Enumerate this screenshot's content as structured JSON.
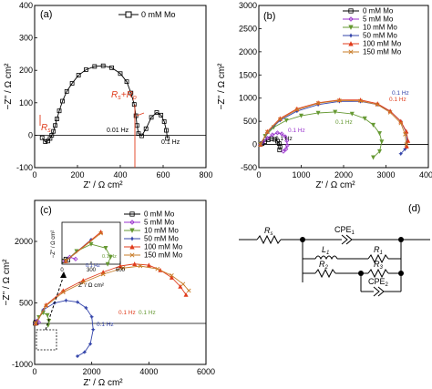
{
  "figure": {
    "panels": [
      {
        "label": "(a)",
        "xlabel": "Z' / Ω cm²",
        "ylabel": "−Z'' / Ω cm²",
        "xlim": [
          0,
          800
        ],
        "ylim": [
          -100,
          400
        ],
        "xticks": [
          "0",
          "200",
          "400",
          "600",
          "800"
        ],
        "yticks": [
          "-100",
          "0",
          "100",
          "200",
          "300",
          "400"
        ],
        "ytick_values": [
          -100,
          0,
          100,
          200,
          300,
          400
        ],
        "xtick_values": [
          0,
          200,
          400,
          600,
          800
        ],
        "legend": [
          {
            "label": "0 mM Mo",
            "color": "#000000",
            "marker": "square"
          }
        ],
        "annotations": {
          "rs": "R",
          "rs_sub": "s",
          "rp": "R",
          "rp_sub": "s",
          "plus": "+",
          "rp2": "R",
          "rp2_sub": "p",
          "freq_low": "0.01 Hz",
          "freq_high": "0.1 Hz"
        }
      },
      {
        "label": "(b)",
        "xlabel": "Z' / Ω cm²",
        "ylabel": "−Z'' / Ω cm²",
        "xlim": [
          0,
          4000
        ],
        "ylim": [
          -500,
          3000
        ],
        "xticks": [
          "0",
          "1000",
          "2000",
          "3000",
          "4000"
        ],
        "xtick_values": [
          0,
          1000,
          2000,
          3000,
          4000
        ],
        "yticks": [
          "-500",
          "0",
          "500",
          "1000",
          "1500",
          "2000",
          "2500",
          "3000"
        ],
        "ytick_values": [
          -500,
          0,
          500,
          1000,
          1500,
          2000,
          2500,
          3000
        ],
        "legend": [
          {
            "label": "0 mM Mo",
            "color": "#000000",
            "marker": "square"
          },
          {
            "label": "5 mM Mo",
            "color": "#9933cc",
            "marker": "diamond"
          },
          {
            "label": "10 mM Mo",
            "color": "#669933",
            "marker": "triangle-down"
          },
          {
            "label": "50 mM Mo",
            "color": "#3344aa",
            "marker": "star"
          },
          {
            "label": "100 mM Mo",
            "color": "#e03c1c",
            "marker": "triangle-up"
          },
          {
            "label": "150 mM Mo",
            "color": "#c87d2a",
            "marker": "x"
          }
        ],
        "annotations": {
          "f1": "0.1 Hz",
          "f2": "0.1 Hz",
          "f3": "0.1 Hz",
          "f4": "0.1 Hz",
          "f5": "0.1 Hz"
        }
      },
      {
        "label": "(c)",
        "xlabel": "Z' / Ω cm²",
        "ylabel": "−Z'' / Ω cm²",
        "xlim": [
          0,
          6000
        ],
        "ylim": [
          -1000,
          3000
        ],
        "xticks": [
          "0",
          "2000",
          "4000",
          "6000"
        ],
        "xtick_values": [
          0,
          2000,
          4000,
          6000
        ],
        "yticks": [
          "-1000",
          "500",
          "2000"
        ],
        "ytick_values": [
          -1000,
          500,
          2000
        ],
        "legend": [
          {
            "label": "0 mM Mo",
            "color": "#000000",
            "marker": "square"
          },
          {
            "label": "5 mM Mo",
            "color": "#9933cc",
            "marker": "diamond"
          },
          {
            "label": "10 mM Mo",
            "color": "#669933",
            "marker": "triangle-down"
          },
          {
            "label": "50 mM Mo",
            "color": "#3344aa",
            "marker": "star"
          },
          {
            "label": "100 mM Mo",
            "color": "#e03c1c",
            "marker": "triangle-up"
          },
          {
            "label": "150 mM Mo",
            "color": "#c87d2a",
            "marker": "x"
          }
        ],
        "annotations": {
          "f1": "0.1 Hz",
          "f2": "0.1 Hz",
          "f3": "0.1 Hz"
        },
        "inset": {
          "xlabel": "Z' / Ω cm²",
          "ylabel": "−Z'' / Ω cm²",
          "xticks": [
            "0",
            "300",
            "600"
          ],
          "xtick_values": [
            0,
            300,
            600
          ],
          "xlim": [
            0,
            600
          ],
          "ylim": [
            -50,
            600
          ],
          "annotations": {
            "f1": "0.1 Hz",
            "f2": "0.1 Hz"
          }
        }
      },
      {
        "label": "(d)",
        "circuit": {
          "rs": "R",
          "rs_sub": "s",
          "cpe1": "CPE",
          "cpe1_sub": "1",
          "l1": "L",
          "l1_sub": "1",
          "r1": "R",
          "r1_sub": "1",
          "r2": "R",
          "r2_sub": "2",
          "r3": "R",
          "r3_sub": "3",
          "cpe2": "CPE",
          "cpe2_sub": "2"
        }
      }
    ]
  },
  "chart_data": [
    {
      "type": "scatter",
      "panel": "(a)",
      "xlabel": "Z' / Ω cm²",
      "ylabel": "−Z'' / Ω cm²",
      "xlim": [
        0,
        800
      ],
      "ylim": [
        -100,
        400
      ],
      "series": [
        {
          "name": "0 mM Mo",
          "x": [
            35,
            50,
            62,
            72,
            80,
            88,
            96,
            104,
            115,
            130,
            150,
            175,
            205,
            240,
            280,
            320,
            360,
            400,
            430,
            450,
            465,
            473,
            478,
            485,
            500,
            520,
            545,
            570,
            590,
            605,
            615,
            620
          ],
          "y": [
            -8,
            -20,
            -18,
            -10,
            0,
            12,
            30,
            50,
            75,
            105,
            135,
            160,
            185,
            202,
            212,
            214,
            208,
            190,
            165,
            130,
            95,
            60,
            30,
            5,
            -2,
            20,
            55,
            70,
            62,
            42,
            15,
            -10
          ]
        }
      ]
    },
    {
      "type": "scatter",
      "panel": "(b)",
      "xlabel": "Z' / Ω cm²",
      "ylabel": "−Z'' / Ω cm²",
      "xlim": [
        0,
        4000
      ],
      "ylim": [
        -500,
        3000
      ],
      "series": [
        {
          "name": "0 mM Mo",
          "x": [
            40,
            80,
            140,
            220,
            300,
            380,
            440,
            480,
            500,
            490
          ],
          "y": [
            0,
            20,
            60,
            100,
            120,
            110,
            70,
            20,
            -50,
            -120
          ]
        },
        {
          "name": "5 mM Mo",
          "x": [
            40,
            100,
            200,
            320,
            440,
            540,
            620,
            660,
            670,
            640,
            580
          ],
          "y": [
            0,
            60,
            140,
            210,
            250,
            230,
            170,
            80,
            -20,
            -100,
            -150
          ]
        },
        {
          "name": "10 mM Mo",
          "x": [
            40,
            150,
            350,
            650,
            1000,
            1400,
            1800,
            2200,
            2500,
            2700,
            2850,
            2900,
            2850,
            2700
          ],
          "y": [
            0,
            180,
            370,
            520,
            620,
            680,
            700,
            660,
            560,
            420,
            240,
            60,
            -150,
            -280
          ]
        },
        {
          "name": "50 mM Mo",
          "x": [
            40,
            200,
            500,
            900,
            1400,
            1900,
            2400,
            2800,
            3100,
            3350,
            3480,
            3500,
            3450,
            3350
          ],
          "y": [
            0,
            260,
            520,
            720,
            860,
            930,
            930,
            860,
            720,
            500,
            260,
            50,
            -100,
            -200
          ]
        },
        {
          "name": "100 mM Mo",
          "x": [
            40,
            200,
            500,
            900,
            1400,
            1900,
            2400,
            2800,
            3100,
            3350,
            3480,
            3520,
            3490
          ],
          "y": [
            0,
            280,
            560,
            770,
            900,
            960,
            960,
            880,
            720,
            500,
            280,
            80,
            -40
          ]
        },
        {
          "name": "150 mM Mo",
          "x": [
            40,
            200,
            500,
            900,
            1400,
            1900,
            2400,
            2800,
            3100,
            3350,
            3450,
            3480
          ],
          "y": [
            0,
            270,
            540,
            750,
            890,
            950,
            940,
            860,
            690,
            460,
            220,
            0
          ]
        }
      ]
    },
    {
      "type": "scatter",
      "panel": "(c)",
      "xlabel": "Z' / Ω cm²",
      "ylabel": "−Z'' / Ω cm²",
      "xlim": [
        0,
        6000
      ],
      "ylim": [
        -1000,
        3000
      ],
      "series": [
        {
          "name": "0 mM Mo",
          "x": [
            20,
            40,
            60
          ],
          "y": [
            0,
            30,
            10
          ]
        },
        {
          "name": "5 mM Mo",
          "x": [
            30,
            80,
            140
          ],
          "y": [
            0,
            60,
            30
          ]
        },
        {
          "name": "10 mM Mo",
          "x": [
            40,
            150,
            300,
            450,
            500,
            470
          ],
          "y": [
            0,
            150,
            260,
            200,
            60,
            -50
          ]
        },
        {
          "name": "50 mM Mo",
          "x": [
            40,
            300,
            700,
            1100,
            1500,
            1800,
            2000,
            2050,
            1950,
            1750,
            1500
          ],
          "y": [
            0,
            330,
            500,
            560,
            520,
            380,
            160,
            -150,
            -500,
            -700,
            -800
          ]
        },
        {
          "name": "100 mM Mo",
          "x": [
            40,
            400,
            1000,
            1700,
            2400,
            3000,
            3500,
            4000,
            4400,
            4800,
            5100,
            5300
          ],
          "y": [
            0,
            450,
            800,
            1050,
            1250,
            1400,
            1450,
            1420,
            1300,
            1120,
            900,
            700
          ]
        },
        {
          "name": "150 mM Mo",
          "x": [
            40,
            400,
            1000,
            1700,
            2400,
            3100,
            3700,
            4300,
            4800,
            5200,
            5400
          ],
          "y": [
            0,
            430,
            760,
            1000,
            1200,
            1350,
            1400,
            1330,
            1170,
            960,
            800
          ]
        }
      ]
    }
  ]
}
